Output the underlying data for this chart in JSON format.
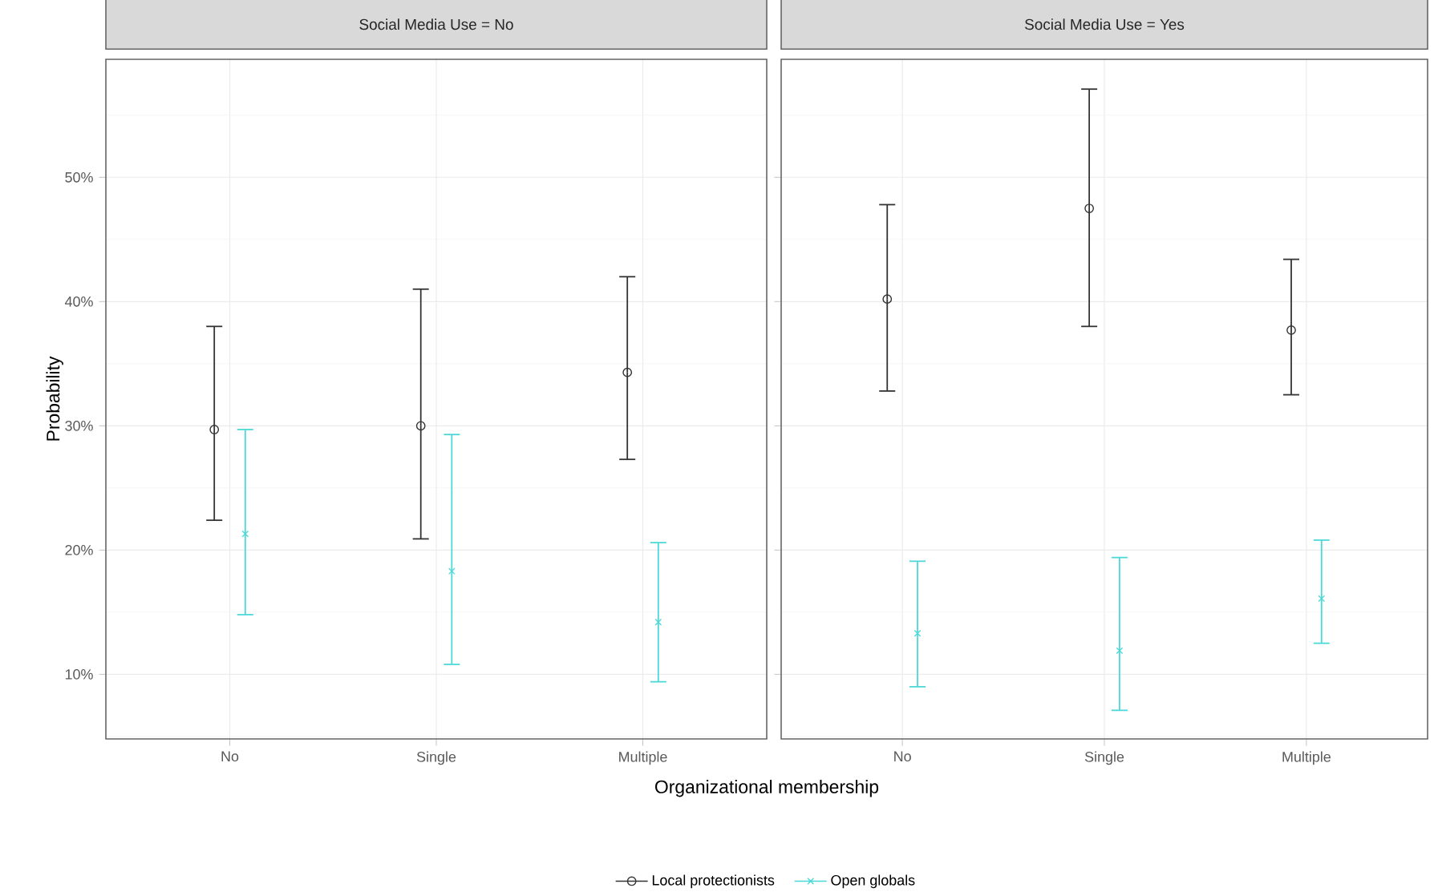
{
  "chart_data": [
    {
      "type": "scatter",
      "title": "Social Media Use = No",
      "xlabel": "Organizational membership",
      "ylabel": "Probability",
      "categories": [
        "No",
        "Single",
        "Multiple"
      ],
      "ylim": [
        4.8,
        59.5
      ],
      "yticks": [
        {
          "value": 10,
          "label": "10%"
        },
        {
          "value": 20,
          "label": "20%"
        },
        {
          "value": 30,
          "label": "30%"
        },
        {
          "value": 40,
          "label": "40%"
        },
        {
          "value": 50,
          "label": "50%"
        }
      ],
      "grid": true,
      "legend": "bottom",
      "series": [
        {
          "name": "Local protectionists",
          "color": "#333333",
          "marker": "circle",
          "values": [
            29.7,
            30.0,
            34.3
          ],
          "errors": [
            [
              22.4,
              38.0
            ],
            [
              20.9,
              41.0
            ],
            [
              27.3,
              42.0
            ]
          ]
        },
        {
          "name": "Open globals",
          "color": "#4dd8d8",
          "marker": "cross",
          "values": [
            21.3,
            18.3,
            14.2
          ],
          "errors": [
            [
              14.8,
              29.7
            ],
            [
              10.8,
              29.3
            ],
            [
              9.4,
              20.6
            ]
          ]
        }
      ]
    },
    {
      "type": "scatter",
      "title": "Social Media Use = Yes",
      "categories": [
        "No",
        "Single",
        "Multiple"
      ],
      "ylim": [
        4.8,
        59.5
      ],
      "yticks": [
        {
          "value": 10,
          "label": null
        },
        {
          "value": 20,
          "label": null
        },
        {
          "value": 30,
          "label": null
        },
        {
          "value": 40,
          "label": null
        },
        {
          "value": 50,
          "label": null
        }
      ],
      "grid": true,
      "tick_labels": "x",
      "series": [
        {
          "color": "#333333",
          "marker": "circle",
          "values": [
            40.2,
            47.5,
            37.7
          ],
          "errors": [
            [
              32.8,
              47.8
            ],
            [
              38.0,
              57.1
            ],
            [
              32.5,
              43.4
            ]
          ]
        },
        {
          "color": "#4dd8d8",
          "marker": "cross",
          "values": [
            13.3,
            11.9,
            16.1
          ],
          "errors": [
            [
              9.0,
              19.1
            ],
            [
              7.1,
              19.4
            ],
            [
              12.5,
              20.8
            ]
          ]
        }
      ]
    }
  ]
}
